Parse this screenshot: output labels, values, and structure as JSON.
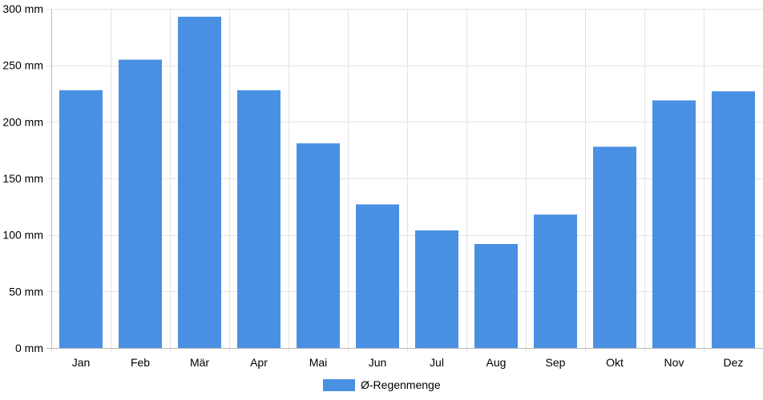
{
  "chart_data": {
    "type": "bar",
    "categories": [
      "Jan",
      "Feb",
      "Mär",
      "Apr",
      "Mai",
      "Jun",
      "Jul",
      "Aug",
      "Sep",
      "Okt",
      "Nov",
      "Dez"
    ],
    "series": [
      {
        "name": "Ø-Regenmenge",
        "values": [
          228,
          255,
          293,
          228,
          181,
          127,
          104,
          92,
          118,
          178,
          219,
          227
        ],
        "color": "#4a90e2"
      }
    ],
    "ylim": [
      0,
      300
    ],
    "yticks": [
      0,
      50,
      100,
      150,
      200,
      250,
      300
    ],
    "y_tick_labels": [
      "0 mm",
      "50 mm",
      "100 mm",
      "150 mm",
      "200 mm",
      "250 mm",
      "300 mm"
    ],
    "grid": true,
    "legend_position": "bottom-center"
  }
}
